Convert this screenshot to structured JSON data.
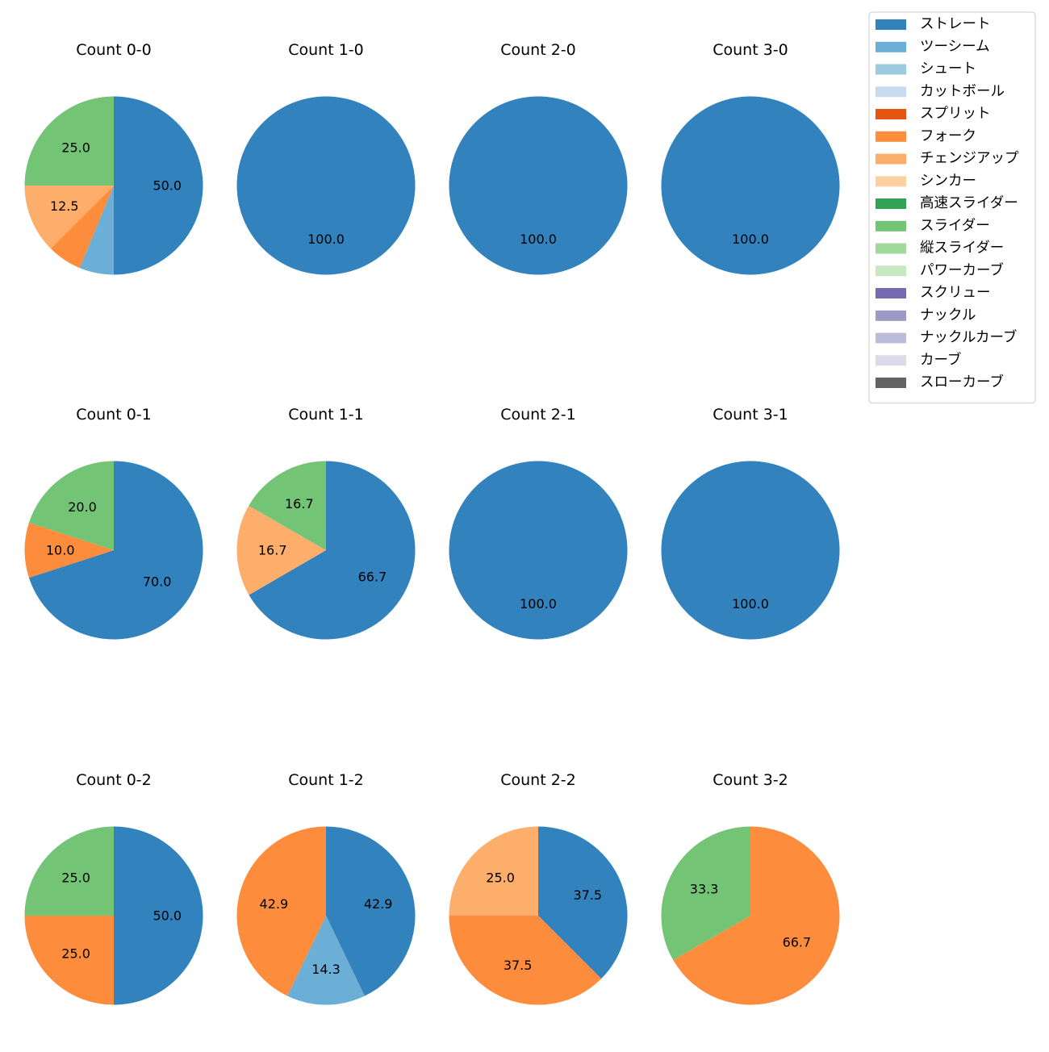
{
  "chart_data": {
    "type": "pie",
    "legend": {
      "placement": "top-right",
      "entries": [
        {
          "name": "ストレート",
          "color": "#3182bd"
        },
        {
          "name": "ツーシーム",
          "color": "#6baed6"
        },
        {
          "name": "シュート",
          "color": "#9ecae1"
        },
        {
          "name": "カットボール",
          "color": "#c6dbef"
        },
        {
          "name": "スプリット",
          "color": "#e6550d"
        },
        {
          "name": "フォーク",
          "color": "#fd8d3c"
        },
        {
          "name": "チェンジアップ",
          "color": "#fdae6b"
        },
        {
          "name": "シンカー",
          "color": "#fdd0a2"
        },
        {
          "name": "高速スライダー",
          "color": "#31a354"
        },
        {
          "name": "スライダー",
          "color": "#74c476"
        },
        {
          "name": "縦スライダー",
          "color": "#a1d99b"
        },
        {
          "name": "パワーカーブ",
          "color": "#c7e9c0"
        },
        {
          "name": "スクリュー",
          "color": "#756bb1"
        },
        {
          "name": "ナックル",
          "color": "#9e9ac8"
        },
        {
          "name": "ナックルカーブ",
          "color": "#bcbddc"
        },
        {
          "name": "カーブ",
          "color": "#dadaeb"
        },
        {
          "name": "スローカーブ",
          "color": "#636363"
        }
      ]
    },
    "charts": [
      {
        "title": "Count 0-0",
        "slices": [
          {
            "name": "ストレート",
            "value": 50.0
          },
          {
            "name": "ツーシーム",
            "value": 6.25
          },
          {
            "name": "フォーク",
            "value": 6.25
          },
          {
            "name": "チェンジアップ",
            "value": 12.5
          },
          {
            "name": "スライダー",
            "value": 25.0
          }
        ]
      },
      {
        "title": "Count 1-0",
        "slices": [
          {
            "name": "ストレート",
            "value": 100.0
          }
        ]
      },
      {
        "title": "Count 2-0",
        "slices": [
          {
            "name": "ストレート",
            "value": 100.0
          }
        ]
      },
      {
        "title": "Count 3-0",
        "slices": [
          {
            "name": "ストレート",
            "value": 100.0
          }
        ]
      },
      {
        "title": "Count 0-1",
        "slices": [
          {
            "name": "ストレート",
            "value": 70.0
          },
          {
            "name": "フォーク",
            "value": 10.0
          },
          {
            "name": "スライダー",
            "value": 20.0
          }
        ]
      },
      {
        "title": "Count 1-1",
        "slices": [
          {
            "name": "ストレート",
            "value": 66.7
          },
          {
            "name": "チェンジアップ",
            "value": 16.7
          },
          {
            "name": "スライダー",
            "value": 16.7
          }
        ]
      },
      {
        "title": "Count 2-1",
        "slices": [
          {
            "name": "ストレート",
            "value": 100.0
          }
        ]
      },
      {
        "title": "Count 3-1",
        "slices": [
          {
            "name": "ストレート",
            "value": 100.0
          }
        ]
      },
      {
        "title": "Count 0-2",
        "slices": [
          {
            "name": "ストレート",
            "value": 50.0
          },
          {
            "name": "フォーク",
            "value": 25.0
          },
          {
            "name": "スライダー",
            "value": 25.0
          }
        ]
      },
      {
        "title": "Count 1-2",
        "slices": [
          {
            "name": "ストレート",
            "value": 42.9
          },
          {
            "name": "ツーシーム",
            "value": 14.3
          },
          {
            "name": "フォーク",
            "value": 42.9
          }
        ]
      },
      {
        "title": "Count 2-2",
        "slices": [
          {
            "name": "ストレート",
            "value": 37.5
          },
          {
            "name": "フォーク",
            "value": 37.5
          },
          {
            "name": "チェンジアップ",
            "value": 25.0
          }
        ]
      },
      {
        "title": "Count 3-2",
        "slices": [
          {
            "name": "フォーク",
            "value": 66.7
          },
          {
            "name": "スライダー",
            "value": 33.3
          }
        ]
      }
    ]
  }
}
